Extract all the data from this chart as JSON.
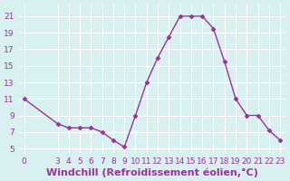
{
  "x": [
    0,
    3,
    4,
    5,
    6,
    7,
    8,
    9,
    10,
    11,
    12,
    13,
    14,
    15,
    16,
    17,
    18,
    19,
    20,
    21,
    22,
    23
  ],
  "y": [
    11,
    8,
    7.5,
    7.5,
    7.5,
    7,
    6,
    5.2,
    9,
    13,
    16,
    18.5,
    21,
    21,
    21,
    19.5,
    15.5,
    11,
    9,
    9,
    7.2,
    6
  ],
  "line_color": "#993399",
  "marker": "D",
  "marker_size": 2.5,
  "bg_color": "#d8f0f0",
  "grid_color": "#ffffff",
  "xlabel": "Windchill (Refroidissement éolien,°C)",
  "xlabel_color": "#993399",
  "xlabel_fontsize": 8,
  "yticks": [
    5,
    7,
    9,
    11,
    13,
    15,
    17,
    19,
    21
  ],
  "xticks": [
    0,
    3,
    4,
    5,
    6,
    7,
    8,
    9,
    10,
    11,
    12,
    13,
    14,
    15,
    16,
    17,
    18,
    19,
    20,
    21,
    22,
    23
  ],
  "ylim": [
    4.5,
    22.5
  ],
  "xlim": [
    -0.5,
    23.5
  ],
  "tick_fontsize": 6.5,
  "tick_color": "#993399"
}
